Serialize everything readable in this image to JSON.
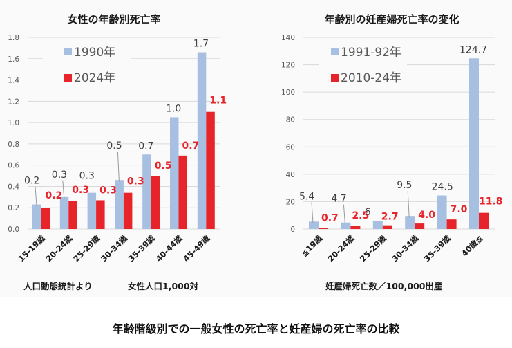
{
  "chart_data": [
    {
      "type": "bar",
      "title": "女性の年齢別死亡率",
      "categories": [
        "15-19歳",
        "20-24歳",
        "25-29歳",
        "30-34歳",
        "35-39歳",
        "40-44歳",
        "45-49歳"
      ],
      "series": [
        {
          "name": "1990年",
          "color": "#a7bfe0",
          "values": [
            0.23,
            0.3,
            0.34,
            0.46,
            0.7,
            1.05,
            1.66
          ],
          "labels": [
            "0.2",
            "0.3",
            "0.3",
            "0.5",
            "0.7",
            "1.0",
            "1.7"
          ]
        },
        {
          "name": "2024年",
          "color": "#e8242b",
          "values": [
            0.2,
            0.26,
            0.27,
            0.34,
            0.5,
            0.69,
            1.1
          ],
          "labels": [
            "0.2",
            "0.3",
            "0.3",
            "0.3",
            "0.5",
            "0.7",
            "1.1"
          ]
        }
      ],
      "yticks": [
        "0.0",
        "0.2",
        "0.4",
        "0.6",
        "0.8",
        "1.0",
        "1.2",
        "1.4",
        "1.6",
        "1.8"
      ],
      "ylim": [
        0,
        1.8
      ],
      "grid": true,
      "legend": "top-left",
      "notes": [
        "人口動態統計より",
        "女性人口1,000対"
      ],
      "xlabel": "",
      "ylabel": ""
    },
    {
      "type": "bar",
      "title": "年齢別の妊産婦死亡率の変化",
      "categories": [
        "≦19歳",
        "20-24歳",
        "25-29歳",
        "30-34歳",
        "35-39歳",
        "40歳≦"
      ],
      "series": [
        {
          "name": "1991-92年",
          "color": "#a7bfe0",
          "values": [
            5.4,
            4.7,
            6,
            9.5,
            24.5,
            124.7
          ],
          "labels": [
            "5.4",
            "4.7",
            "6",
            "9.5",
            "24.5",
            "124.7"
          ]
        },
        {
          "name": "2010-24年",
          "color": "#e8242b",
          "values": [
            0.7,
            2.5,
            2.7,
            4.0,
            7.0,
            11.8
          ],
          "labels": [
            "0.7",
            "2.5",
            "2.7",
            "4.0",
            "7.0",
            "11.8"
          ]
        }
      ],
      "yticks": [
        "0",
        "20",
        "40",
        "60",
        "80",
        "100",
        "120",
        "140"
      ],
      "ylim": [
        0,
        140
      ],
      "grid": true,
      "legend": "top-left",
      "notes": [
        "妊産婦死亡数／100,000出産"
      ],
      "xlabel": "",
      "ylabel": ""
    }
  ],
  "caption": "年齢階級別での一般女性の死亡率と妊産婦の死亡率の比較"
}
